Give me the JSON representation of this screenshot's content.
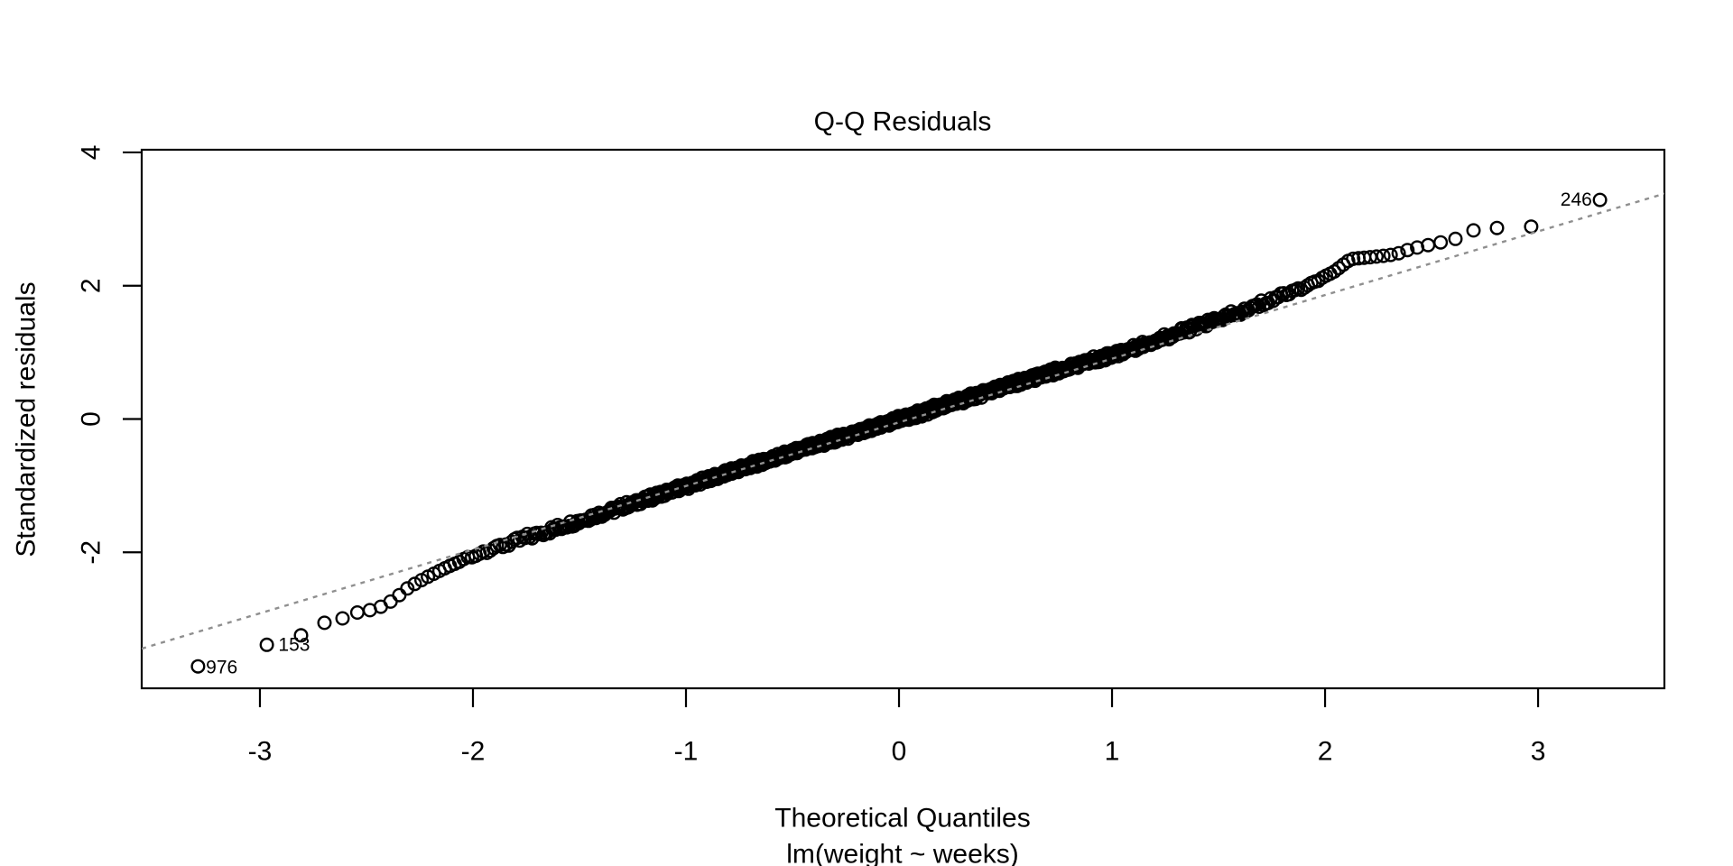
{
  "chart_data": {
    "type": "scatter",
    "subtype": "qq-normal-plot",
    "title": "Q-Q Residuals",
    "xlabel": "Theoretical Quantiles",
    "ylabel": "Standardized residuals",
    "model_caption": "lm(weight ~ weeks)",
    "grid": false,
    "legend": null,
    "x_ticks": [
      -3,
      -2,
      -1,
      0,
      1,
      2,
      3
    ],
    "y_ticks": [
      -2,
      0,
      2,
      4
    ],
    "xlim": [
      -3.555,
      3.593
    ],
    "ylim": [
      -4.04,
      4.04
    ],
    "n_points": 1000,
    "point_style": {
      "marker": "open-circle",
      "color": "#000000"
    },
    "reference_line": {
      "slope": 0.955,
      "intercept": -0.05,
      "style": "dotted",
      "color": "#8f8f8f"
    },
    "qq_curve": [
      [
        -3.3,
        -3.72
      ],
      [
        -2.96,
        -3.38
      ],
      [
        -2.81,
        -3.25
      ],
      [
        -2.7,
        -3.06
      ],
      [
        -2.61,
        -2.99
      ],
      [
        -2.54,
        -2.9
      ],
      [
        -2.47,
        -2.86
      ],
      [
        -2.41,
        -2.79
      ],
      [
        -2.36,
        -2.68
      ],
      [
        -2.3,
        -2.52
      ],
      [
        -2.22,
        -2.38
      ],
      [
        -2.12,
        -2.22
      ],
      [
        -2.02,
        -2.08
      ],
      [
        -1.9,
        -1.94
      ],
      [
        -1.75,
        -1.78
      ],
      [
        -1.55,
        -1.58
      ],
      [
        -1.3,
        -1.32
      ],
      [
        -1.0,
        -1.01
      ],
      [
        -0.7,
        -0.7
      ],
      [
        -0.4,
        -0.4
      ],
      [
        0.0,
        -0.01
      ],
      [
        0.4,
        0.39
      ],
      [
        0.7,
        0.69
      ],
      [
        1.0,
        0.96
      ],
      [
        1.3,
        1.28
      ],
      [
        1.5,
        1.5
      ],
      [
        1.63,
        1.62
      ],
      [
        1.72,
        1.76
      ],
      [
        1.85,
        1.92
      ],
      [
        1.95,
        2.05
      ],
      [
        2.05,
        2.23
      ],
      [
        2.12,
        2.4
      ],
      [
        2.25,
        2.44
      ],
      [
        2.33,
        2.47
      ],
      [
        2.4,
        2.55
      ],
      [
        2.47,
        2.6
      ],
      [
        2.53,
        2.64
      ],
      [
        2.61,
        2.7
      ],
      [
        2.71,
        2.85
      ],
      [
        2.83,
        2.87
      ],
      [
        2.99,
        2.89
      ],
      [
        3.3,
        3.3
      ]
    ],
    "labeled_points": [
      {
        "label": "976",
        "x": -3.3,
        "y": -3.72,
        "label_side": "right"
      },
      {
        "label": "153",
        "x": -2.96,
        "y": -3.38,
        "label_side": "right"
      },
      {
        "label": "246",
        "x": 3.3,
        "y": 3.3,
        "label_side": "left"
      }
    ]
  }
}
